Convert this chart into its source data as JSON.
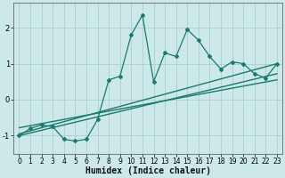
{
  "xlabel": "Humidex (Indice chaleur)",
  "bg_color": "#cce8e8",
  "line_color": "#1a7a6e",
  "xlim": [
    -0.5,
    23.5
  ],
  "ylim": [
    -1.5,
    2.7
  ],
  "xticks": [
    0,
    1,
    2,
    3,
    4,
    5,
    6,
    7,
    8,
    9,
    10,
    11,
    12,
    13,
    14,
    15,
    16,
    17,
    18,
    19,
    20,
    21,
    22,
    23
  ],
  "yticks": [
    -1,
    0,
    1,
    2
  ],
  "main_x": [
    0,
    1,
    2,
    3,
    4,
    5,
    6,
    7,
    8,
    9,
    10,
    11,
    12,
    13,
    14,
    15,
    16,
    17,
    18,
    19,
    20,
    21,
    22,
    23
  ],
  "main_y": [
    -1.0,
    -0.8,
    -0.7,
    -0.75,
    -1.1,
    -1.15,
    -1.1,
    -0.55,
    0.55,
    0.65,
    1.8,
    2.35,
    0.5,
    1.3,
    1.2,
    1.95,
    1.65,
    1.2,
    0.85,
    1.05,
    1.0,
    0.72,
    0.6,
    1.0
  ],
  "line1_x": [
    0,
    23
  ],
  "line1_y": [
    -0.95,
    1.0
  ],
  "line2_x": [
    0,
    23
  ],
  "line2_y": [
    -1.0,
    0.72
  ],
  "line3_x": [
    0,
    23
  ],
  "line3_y": [
    -0.78,
    0.55
  ],
  "grid_color": "#aad0d0",
  "tick_fontsize": 6,
  "label_fontsize": 7
}
